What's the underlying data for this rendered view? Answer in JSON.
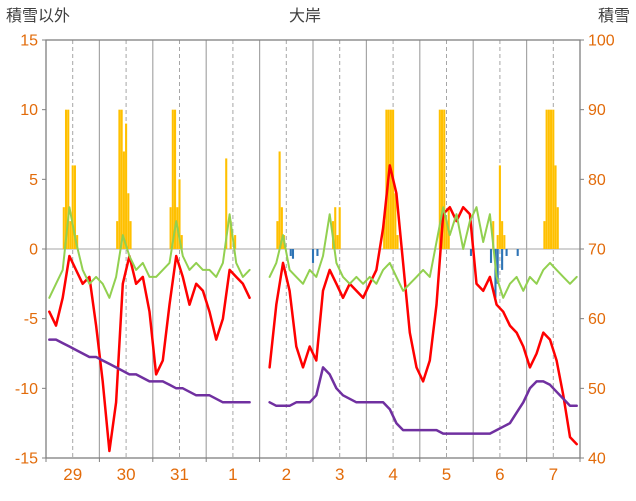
{
  "header": {
    "left_axis_title": "積雪以外",
    "title": "大岸",
    "right_axis_title": "積雪"
  },
  "chart_data": {
    "type": "combo",
    "title": "大岸",
    "left_axis": {
      "label": "積雪以外",
      "min": -15,
      "max": 15,
      "ticks": [
        15,
        10,
        5,
        0,
        -5,
        -10,
        -15
      ]
    },
    "right_axis": {
      "label": "積雪",
      "min": 40,
      "max": 100,
      "ticks": [
        100,
        90,
        80,
        70,
        60,
        50,
        40
      ]
    },
    "x_labels": [
      "29",
      "30",
      "31",
      "1",
      "2",
      "3",
      "4",
      "5",
      "6",
      "7"
    ],
    "step_hours": 3,
    "grid": {
      "solid_day_boundaries": true,
      "dashed_midday": true,
      "horizontal_zero_line": true
    },
    "series": [
      {
        "name": "red-line",
        "color": "#FF0000",
        "axis": "left",
        "width": 2.5,
        "values": [
          -4.5,
          -5.5,
          -3.5,
          -0.5,
          -1.5,
          -2.5,
          -2.0,
          -5.5,
          -9.5,
          -14.5,
          -11.0,
          -2.5,
          -0.5,
          -2.5,
          -2.0,
          -4.5,
          -9.0,
          -8.0,
          -4.0,
          -0.5,
          -2.0,
          -4.0,
          -2.5,
          -3.0,
          -4.5,
          -6.5,
          -5.0,
          -1.5,
          -2.0,
          -2.5,
          -3.5,
          null,
          null,
          -8.5,
          -4.0,
          -1.0,
          -3.0,
          -7.0,
          -8.5,
          -7.0,
          -8.0,
          -3.0,
          -1.5,
          -2.5,
          -3.5,
          -2.5,
          -3.0,
          -3.5,
          -2.5,
          -1.5,
          1.5,
          6.0,
          4.0,
          -1.0,
          -6.0,
          -8.5,
          -9.5,
          -8.0,
          -4.0,
          2.5,
          3.0,
          2.0,
          3.0,
          2.5,
          -2.5,
          -3.0,
          -2.0,
          -4.0,
          -4.5,
          -5.5,
          -6.0,
          -7.0,
          -8.5,
          -7.5,
          -6.0,
          -6.5,
          -8.0,
          -10.5,
          -13.5,
          -14.0
        ]
      },
      {
        "name": "green-line",
        "color": "#92D050",
        "axis": "left",
        "width": 2,
        "values": [
          -3.5,
          -2.5,
          -1.5,
          3.0,
          0.5,
          -1.5,
          -2.5,
          -2.0,
          -2.5,
          -3.5,
          -2.0,
          1.0,
          -0.5,
          -1.5,
          -1.0,
          -2.0,
          -2.0,
          -1.5,
          -1.0,
          2.0,
          -0.5,
          -1.5,
          -1.0,
          -1.5,
          -1.5,
          -2.0,
          -1.0,
          2.5,
          -1.0,
          -2.0,
          -1.5,
          null,
          null,
          -2.0,
          -1.0,
          1.0,
          -1.5,
          -2.0,
          -2.5,
          -1.5,
          -2.0,
          -0.5,
          2.5,
          -1.0,
          -2.0,
          -2.5,
          -2.0,
          -2.5,
          -2.0,
          -2.5,
          -1.5,
          -1.0,
          -2.0,
          -3.0,
          -2.5,
          -2.0,
          -1.5,
          -2.0,
          0.5,
          3.0,
          1.0,
          2.5,
          0.0,
          2.0,
          3.0,
          0.5,
          2.5,
          -2.0,
          -3.5,
          -2.5,
          -2.0,
          -3.0,
          -2.0,
          -2.5,
          -1.5,
          -1.0,
          -1.5,
          -2.0,
          -2.5,
          -2.0
        ]
      },
      {
        "name": "purple-line",
        "color": "#7030A0",
        "axis": "right",
        "width": 2.5,
        "values": [
          57,
          57,
          56.5,
          56,
          55.5,
          55,
          54.5,
          54.5,
          54,
          53.5,
          53,
          52.5,
          52,
          52,
          51.5,
          51,
          51,
          51,
          50.5,
          50,
          50,
          49.5,
          49,
          49,
          49,
          48.5,
          48,
          48,
          48,
          48,
          48,
          null,
          null,
          48,
          47.5,
          47.5,
          47.5,
          48,
          48,
          48,
          49,
          53,
          52,
          50,
          49,
          48.5,
          48,
          48,
          48,
          48,
          48,
          47,
          45,
          44,
          44,
          44,
          44,
          44,
          44,
          43.5,
          43.5,
          43.5,
          43.5,
          43.5,
          43.5,
          43.5,
          43.5,
          44,
          44.5,
          45,
          46.5,
          48,
          50,
          51,
          51,
          50.5,
          49.5,
          48.5,
          47.5,
          47.5
        ]
      }
    ],
    "bars": [
      {
        "name": "orange-bars",
        "color": "#FFC000",
        "axis": "left",
        "points": [
          {
            "d": 0,
            "h": 8,
            "v": 3
          },
          {
            "d": 0,
            "h": 9,
            "v": 10
          },
          {
            "d": 0,
            "h": 10,
            "v": 10
          },
          {
            "d": 0,
            "h": 11,
            "v": 2
          },
          {
            "d": 0,
            "h": 12,
            "v": 6
          },
          {
            "d": 0,
            "h": 13,
            "v": 6
          },
          {
            "d": 0,
            "h": 14,
            "v": 1
          },
          {
            "d": 1,
            "h": 8,
            "v": 2
          },
          {
            "d": 1,
            "h": 9,
            "v": 10
          },
          {
            "d": 1,
            "h": 10,
            "v": 10
          },
          {
            "d": 1,
            "h": 11,
            "v": 7
          },
          {
            "d": 1,
            "h": 12,
            "v": 9
          },
          {
            "d": 1,
            "h": 13,
            "v": 4
          },
          {
            "d": 1,
            "h": 14,
            "v": 2
          },
          {
            "d": 2,
            "h": 8,
            "v": 3
          },
          {
            "d": 2,
            "h": 9,
            "v": 10
          },
          {
            "d": 2,
            "h": 10,
            "v": 10
          },
          {
            "d": 2,
            "h": 11,
            "v": 3
          },
          {
            "d": 2,
            "h": 12,
            "v": 5
          },
          {
            "d": 2,
            "h": 13,
            "v": 1
          },
          {
            "d": 3,
            "h": 9,
            "v": 6.5
          },
          {
            "d": 3,
            "h": 11,
            "v": 2
          },
          {
            "d": 3,
            "h": 13,
            "v": 1
          },
          {
            "d": 4,
            "h": 8,
            "v": 2
          },
          {
            "d": 4,
            "h": 9,
            "v": 7
          },
          {
            "d": 4,
            "h": 10,
            "v": 3
          },
          {
            "d": 4,
            "h": 11,
            "v": 1
          },
          {
            "d": 5,
            "h": 9,
            "v": 2
          },
          {
            "d": 5,
            "h": 10,
            "v": 3
          },
          {
            "d": 5,
            "h": 11,
            "v": 1
          },
          {
            "d": 5,
            "h": 12,
            "v": 3
          },
          {
            "d": 6,
            "h": 8,
            "v": 2
          },
          {
            "d": 6,
            "h": 9,
            "v": 10
          },
          {
            "d": 6,
            "h": 10,
            "v": 10
          },
          {
            "d": 6,
            "h": 11,
            "v": 10
          },
          {
            "d": 6,
            "h": 12,
            "v": 10
          },
          {
            "d": 6,
            "h": 13,
            "v": 4
          },
          {
            "d": 6,
            "h": 14,
            "v": 1
          },
          {
            "d": 7,
            "h": 9,
            "v": 10
          },
          {
            "d": 7,
            "h": 10,
            "v": 10
          },
          {
            "d": 7,
            "h": 11,
            "v": 10
          },
          {
            "d": 7,
            "h": 12,
            "v": 2
          },
          {
            "d": 7,
            "h": 13,
            "v": 3
          },
          {
            "d": 8,
            "h": 9,
            "v": 2
          },
          {
            "d": 8,
            "h": 11,
            "v": 1
          },
          {
            "d": 8,
            "h": 12,
            "v": 6
          },
          {
            "d": 8,
            "h": 13,
            "v": 2
          },
          {
            "d": 8,
            "h": 14,
            "v": 1
          },
          {
            "d": 9,
            "h": 8,
            "v": 2
          },
          {
            "d": 9,
            "h": 9,
            "v": 10
          },
          {
            "d": 9,
            "h": 10,
            "v": 10
          },
          {
            "d": 9,
            "h": 11,
            "v": 10
          },
          {
            "d": 9,
            "h": 12,
            "v": 10
          },
          {
            "d": 9,
            "h": 13,
            "v": 6
          },
          {
            "d": 9,
            "h": 14,
            "v": 3
          }
        ]
      },
      {
        "name": "blue-bars",
        "color": "#2E74B5",
        "axis": "left",
        "points": [
          {
            "d": 4,
            "h": 14,
            "v": -0.5
          },
          {
            "d": 4,
            "h": 15,
            "v": -0.7
          },
          {
            "d": 5,
            "h": 0,
            "v": -1
          },
          {
            "d": 5,
            "h": 2,
            "v": -0.5
          },
          {
            "d": 7,
            "h": 23,
            "v": -0.5
          },
          {
            "d": 8,
            "h": 8,
            "v": -1
          },
          {
            "d": 8,
            "h": 10,
            "v": -3.5
          },
          {
            "d": 8,
            "h": 11,
            "v": -2.5
          },
          {
            "d": 8,
            "h": 13,
            "v": -1.5
          },
          {
            "d": 8,
            "h": 15,
            "v": -0.5
          },
          {
            "d": 8,
            "h": 20,
            "v": -0.5
          }
        ]
      }
    ],
    "colors": {
      "grid": "#A6A6A6",
      "border": "#808080",
      "axis_text": "#E26B0A",
      "title_text": "#404040"
    }
  }
}
